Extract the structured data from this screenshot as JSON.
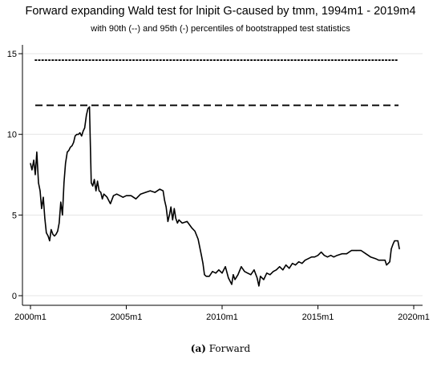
{
  "chart_data": {
    "type": "line",
    "title": "Forward expanding Wald test for lnipit G-caused by tmm, 1994m1 - 2019m4",
    "subtitle": "with 90th (--) and 95th (-) percentiles of bootstrapped test statistics",
    "xlabel": "",
    "ylabel": "",
    "xlim": [
      1999.9,
      2020.1
    ],
    "ylim": [
      0,
      15
    ],
    "grid": true,
    "x_ticks": [
      2000,
      2005,
      2010,
      2015,
      2020
    ],
    "x_tick_labels": [
      "2000m1",
      "2005m1",
      "2010m1",
      "2015m1",
      "2020m1"
    ],
    "y_ticks": [
      0,
      5,
      10,
      15
    ],
    "y_tick_labels": [
      "0",
      "5",
      "10",
      "15"
    ],
    "reference_lines": [
      {
        "style": "dotted",
        "value": 14.6
      },
      {
        "style": "dashed",
        "value": 11.8
      }
    ],
    "series": [
      {
        "style": "solid",
        "x": [
          2000.0,
          2000.08,
          2000.17,
          2000.25,
          2000.33,
          2000.42,
          2000.5,
          2000.58,
          2000.67,
          2000.75,
          2000.83,
          2000.92,
          2001.0,
          2001.08,
          2001.17,
          2001.25,
          2001.33,
          2001.42,
          2001.5,
          2001.58,
          2001.67,
          2001.75,
          2001.83,
          2001.92,
          2002.0,
          2002.08,
          2002.17,
          2002.25,
          2002.33,
          2002.42,
          2002.5,
          2002.58,
          2002.67,
          2002.75,
          2002.83,
          2002.92,
          2003.0,
          2003.08,
          2003.17,
          2003.25,
          2003.33,
          2003.42,
          2003.5,
          2003.58,
          2003.67,
          2003.75,
          2003.83,
          2003.92,
          2004.0,
          2004.17,
          2004.33,
          2004.5,
          2004.67,
          2004.83,
          2005.0,
          2005.25,
          2005.5,
          2005.75,
          2006.0,
          2006.25,
          2006.5,
          2006.75,
          2006.92,
          2007.0,
          2007.08,
          2007.17,
          2007.25,
          2007.33,
          2007.42,
          2007.5,
          2007.58,
          2007.67,
          2007.75,
          2007.92,
          2008.17,
          2008.42,
          2008.58,
          2008.75,
          2008.92,
          2009.0,
          2009.08,
          2009.17,
          2009.33,
          2009.5,
          2009.67,
          2009.83,
          2010.0,
          2010.17,
          2010.33,
          2010.5,
          2010.58,
          2010.67,
          2010.83,
          2011.0,
          2011.17,
          2011.33,
          2011.5,
          2011.67,
          2011.83,
          2011.92,
          2012.0,
          2012.17,
          2012.33,
          2012.5,
          2012.67,
          2012.83,
          2013.0,
          2013.17,
          2013.33,
          2013.5,
          2013.67,
          2013.83,
          2014.0,
          2014.17,
          2014.33,
          2014.5,
          2014.67,
          2014.83,
          2015.0,
          2015.17,
          2015.33,
          2015.5,
          2015.67,
          2015.83,
          2016.0,
          2016.25,
          2016.5,
          2016.75,
          2017.0,
          2017.25,
          2017.5,
          2017.75,
          2018.0,
          2018.17,
          2018.33,
          2018.5,
          2018.58,
          2018.67,
          2018.75,
          2018.83,
          2018.92,
          2019.0,
          2019.17,
          2019.25
        ],
        "y": [
          8.2,
          7.8,
          8.4,
          7.5,
          8.9,
          7.0,
          6.5,
          5.4,
          6.1,
          4.8,
          3.9,
          3.7,
          3.4,
          4.1,
          3.8,
          3.7,
          3.8,
          4.0,
          4.5,
          5.8,
          5.0,
          7.0,
          8.2,
          8.9,
          9.0,
          9.2,
          9.3,
          9.5,
          9.9,
          10.0,
          10.0,
          10.1,
          9.9,
          10.2,
          10.4,
          11.2,
          11.6,
          11.7,
          7.0,
          6.8,
          7.2,
          6.5,
          7.1,
          6.5,
          6.4,
          6.0,
          6.3,
          6.2,
          6.1,
          5.7,
          6.2,
          6.3,
          6.2,
          6.1,
          6.2,
          6.2,
          6.0,
          6.3,
          6.4,
          6.5,
          6.4,
          6.6,
          6.5,
          5.9,
          5.5,
          4.6,
          5.0,
          5.5,
          4.7,
          5.4,
          4.8,
          4.5,
          4.7,
          4.5,
          4.6,
          4.2,
          4.0,
          3.5,
          2.5,
          2.0,
          1.3,
          1.2,
          1.2,
          1.5,
          1.4,
          1.6,
          1.4,
          1.8,
          1.1,
          0.7,
          1.3,
          1.0,
          1.3,
          1.8,
          1.5,
          1.4,
          1.3,
          1.6,
          1.1,
          0.6,
          1.2,
          1.0,
          1.4,
          1.3,
          1.5,
          1.6,
          1.8,
          1.6,
          1.9,
          1.7,
          2.0,
          1.9,
          2.1,
          2.0,
          2.2,
          2.3,
          2.4,
          2.4,
          2.5,
          2.7,
          2.5,
          2.4,
          2.5,
          2.4,
          2.5,
          2.6,
          2.6,
          2.8,
          2.8,
          2.8,
          2.6,
          2.4,
          2.3,
          2.2,
          2.2,
          2.2,
          1.9,
          2.0,
          2.1,
          2.9,
          3.2,
          3.4,
          3.4,
          2.9
        ]
      }
    ]
  },
  "caption": {
    "letter": "(a)",
    "text": "Forward"
  }
}
